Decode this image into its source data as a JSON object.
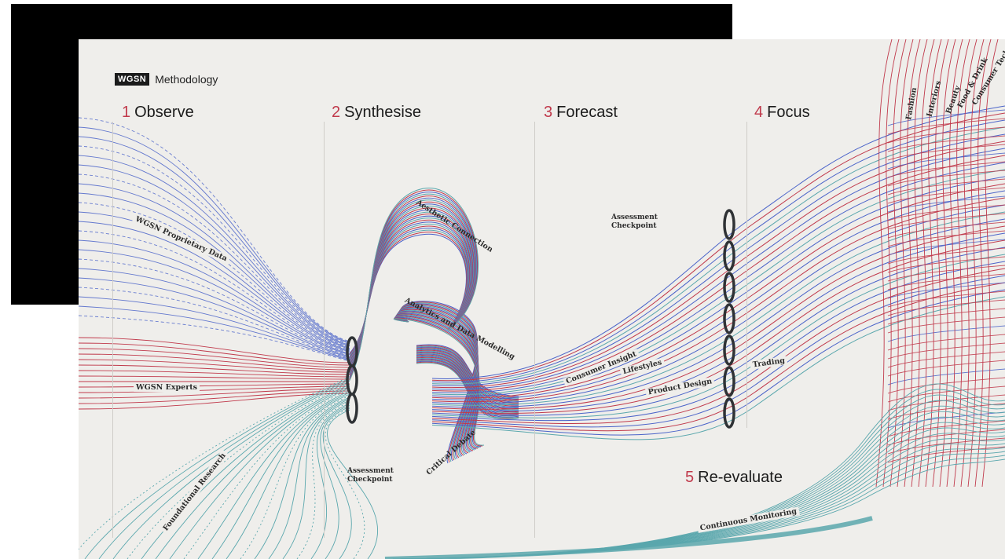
{
  "brand": {
    "logo": "WGSN",
    "title": "Methodology"
  },
  "steps": [
    {
      "num": "1",
      "label": "Observe"
    },
    {
      "num": "2",
      "label": "Synthesise"
    },
    {
      "num": "3",
      "label": "Forecast"
    },
    {
      "num": "4",
      "label": "Focus"
    },
    {
      "num": "5",
      "label": "Re-evaluate"
    }
  ],
  "labels": {
    "proprietary": "WGSN Proprietary Data",
    "experts": "WGSN Experts",
    "foundational": "Foundational Research",
    "aesthetic": "Aesthetic Connection",
    "analytics": "Analytics and Data Modelling",
    "critical": "Critical Debate",
    "consumer": "Consumer Insight",
    "lifestyles": "Lifestyles",
    "product": "Product Design",
    "trading": "Trading",
    "monitoring": "Continuous Monitoring",
    "checkpoint1_line1": "Assessment",
    "checkpoint1_line2": "Checkpoint",
    "checkpoint2_line1": "Assessment",
    "checkpoint2_line2": "Checkpoint"
  },
  "categories": [
    "Fashion",
    "Interiors",
    "Beauty",
    "Food & Drink",
    "Consumer Tech"
  ],
  "colors": {
    "blue": "#4a63c9",
    "red": "#c0394b",
    "teal": "#5aa7ad",
    "ink": "#1b1b1b",
    "background": "#efeeeb"
  }
}
